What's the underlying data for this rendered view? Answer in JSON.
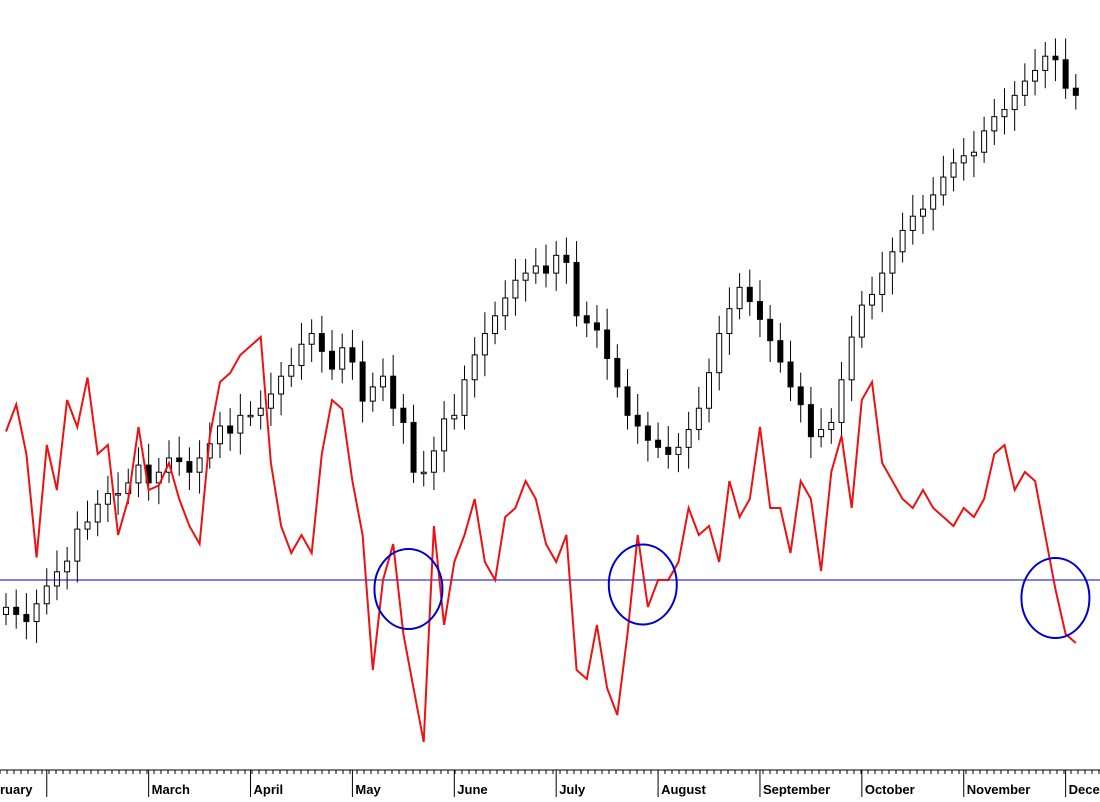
{
  "chart_data": [
    {
      "type": "candlestick",
      "title": "",
      "xlabel": "",
      "ylabel": "",
      "ylim": [
        0,
        100
      ],
      "grid": false,
      "x_tick_labels": [
        "ruary",
        "March",
        "April",
        "May",
        "June",
        "July",
        "August",
        "September",
        "October",
        "November",
        "December"
      ],
      "x_tick_positions": [
        0,
        1,
        2,
        3,
        4,
        5,
        6,
        7,
        8,
        9,
        10
      ],
      "xlim": [
        -0.4,
        10.2
      ],
      "ohlc_x": [
        -0.4,
        -0.3,
        -0.2,
        -0.1,
        0.0,
        0.1,
        0.2,
        0.3,
        0.4,
        0.5,
        0.6,
        0.7,
        0.8,
        0.9,
        1.0,
        1.1,
        1.2,
        1.3,
        1.4,
        1.5,
        1.6,
        1.7,
        1.8,
        1.9,
        2.0,
        2.1,
        2.2,
        2.3,
        2.4,
        2.5,
        2.6,
        2.7,
        2.8,
        2.9,
        3.0,
        3.1,
        3.2,
        3.3,
        3.4,
        3.5,
        3.6,
        3.7,
        3.8,
        3.9,
        4.0,
        4.1,
        4.2,
        4.3,
        4.4,
        4.5,
        4.6,
        4.7,
        4.8,
        4.9,
        5.0,
        5.1,
        5.2,
        5.3,
        5.4,
        5.5,
        5.6,
        5.7,
        5.8,
        5.9,
        6.0,
        6.1,
        6.2,
        6.3,
        6.4,
        6.5,
        6.6,
        6.7,
        6.8,
        6.9,
        7.0,
        7.1,
        7.2,
        7.3,
        7.4,
        7.5,
        7.6,
        7.7,
        7.8,
        7.9,
        8.0,
        8.1,
        8.2,
        8.3,
        8.4,
        8.5,
        8.6,
        8.7,
        8.8,
        8.9,
        9.0,
        9.1,
        9.2,
        9.3,
        9.4,
        9.5,
        9.6,
        9.7,
        9.8,
        9.9,
        10.0,
        10.1
      ],
      "close": [
        12,
        10,
        8,
        13,
        18,
        22,
        25,
        34,
        36,
        41,
        44,
        44,
        47,
        52,
        47,
        50,
        54,
        53,
        50,
        54,
        58,
        63,
        61,
        66,
        66,
        68,
        72,
        77,
        80,
        86,
        89,
        84,
        79,
        85,
        81,
        70,
        74,
        77,
        68,
        64,
        50,
        50,
        56,
        65,
        66,
        76,
        83,
        89,
        94,
        99,
        104,
        106,
        108,
        106,
        111,
        109,
        94,
        92,
        90,
        82,
        74,
        66,
        63,
        59,
        57,
        55,
        57,
        62,
        68,
        78,
        89,
        96,
        102,
        98,
        93,
        87,
        81,
        74,
        69,
        60,
        62,
        64,
        76,
        88,
        97,
        100,
        106,
        112,
        118,
        122,
        124,
        128,
        133,
        137,
        139,
        140,
        146,
        150,
        152,
        156,
        160,
        163,
        167,
        166,
        158,
        156
      ],
      "series": [
        {
          "name": "",
          "x": [
            -0.4,
            -0.3,
            -0.2,
            -0.1,
            0.0,
            0.1,
            0.2,
            0.3,
            0.4,
            0.5,
            0.6,
            0.7,
            0.8,
            0.9,
            1.0,
            1.1,
            1.2,
            1.3,
            1.4,
            1.5,
            1.6,
            1.7,
            1.8,
            1.9,
            2.0,
            2.1,
            2.2,
            2.3,
            2.4,
            2.5,
            2.6,
            2.7,
            2.8,
            2.9,
            3.0,
            3.1,
            3.2,
            3.3,
            3.4,
            3.5,
            3.6,
            3.7,
            3.8,
            3.9,
            4.0,
            4.1,
            4.2,
            4.3,
            4.4,
            4.5,
            4.6,
            4.7,
            4.8,
            4.9,
            5.0,
            5.1,
            5.2,
            5.3,
            5.4,
            5.5,
            5.6,
            5.7,
            5.8,
            5.9,
            6.0,
            6.1,
            6.2,
            6.3,
            6.4,
            6.5,
            6.6,
            6.7,
            6.8,
            6.9,
            7.0,
            7.1,
            7.2,
            7.3,
            7.4,
            7.5,
            7.6,
            7.7,
            7.8,
            7.9,
            8.0,
            8.1,
            8.2,
            8.3,
            8.4,
            8.5,
            8.6,
            8.7,
            8.8,
            8.9,
            9.0,
            9.1,
            9.2,
            9.3,
            9.4,
            9.5,
            9.6,
            9.7,
            9.8,
            9.9,
            10.0,
            10.1
          ],
          "values": [
            73,
            79,
            68,
            45,
            70,
            60,
            80,
            74,
            85,
            68,
            70,
            50,
            58,
            74,
            60,
            61,
            66,
            58,
            52,
            48,
            72,
            84,
            86,
            90,
            92,
            94,
            66,
            52,
            46,
            50,
            46,
            68,
            80,
            78,
            62,
            50,
            20,
            40,
            48,
            28,
            16,
            4,
            52,
            30,
            44,
            50,
            58,
            44,
            40,
            54,
            56,
            62,
            58,
            48,
            44,
            50,
            20,
            18,
            30,
            16,
            10,
            28,
            50,
            34,
            40,
            40,
            44,
            56,
            50,
            52,
            44,
            62,
            54,
            58,
            74,
            56,
            56,
            46,
            62,
            58,
            42,
            64,
            72,
            56,
            80,
            84,
            66,
            62,
            58,
            56,
            60,
            56,
            54,
            52,
            56,
            54,
            58,
            68,
            70,
            60,
            64,
            62,
            50,
            38,
            28,
            26
          ]
        }
      ],
      "reference_line": {
        "value": 40,
        "color": "#0000cc"
      },
      "annotations": [
        {
          "shape": "circle",
          "x": 3.55,
          "y": 38,
          "color": "#0000cc"
        },
        {
          "shape": "circle",
          "x": 5.85,
          "y": 39,
          "color": "#0000cc"
        },
        {
          "shape": "circle",
          "x": 9.9,
          "y": 36,
          "color": "#0000cc"
        }
      ],
      "colors": {
        "candle": "#000000",
        "indicator": "#ee1111",
        "reference": "#0000cc",
        "axis": "#000000",
        "background": "#ffffff"
      }
    }
  ]
}
